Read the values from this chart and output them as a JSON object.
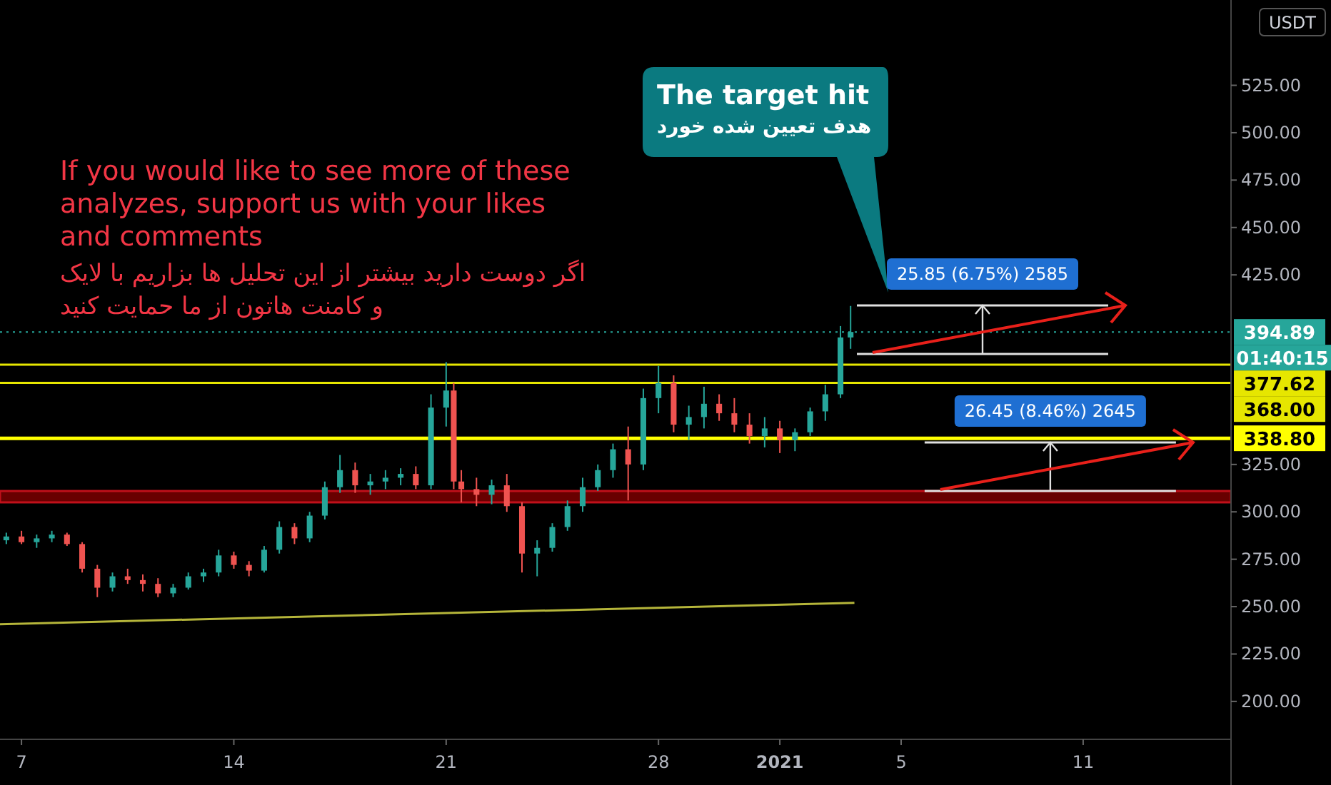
{
  "chart_data": {
    "type": "candlestick",
    "ylabel": "USDT",
    "xlim": [
      "2020-12-06T07:00",
      "2021-01-15T21:00"
    ],
    "xticks": [
      {
        "value": "2020-12-07",
        "label": "7"
      },
      {
        "value": "2020-12-14",
        "label": "14"
      },
      {
        "value": "2020-12-21",
        "label": "21"
      },
      {
        "value": "2020-12-28",
        "label": "28"
      },
      {
        "value": "2021-01-01",
        "label": "2021"
      },
      {
        "value": "2021-01-05",
        "label": "5"
      },
      {
        "value": "2021-01-11",
        "label": "11"
      }
    ],
    "ylim": [
      180,
      570
    ],
    "yticks": [
      {
        "value": 200,
        "label": "200.00"
      },
      {
        "value": 225,
        "label": "225.00"
      },
      {
        "value": 250,
        "label": "250.00"
      },
      {
        "value": 275,
        "label": "275.00"
      },
      {
        "value": 300,
        "label": "300.00"
      },
      {
        "value": 325,
        "label": "325.00"
      },
      {
        "value": 425,
        "label": "425.00"
      },
      {
        "value": 450,
        "label": "450.00"
      },
      {
        "value": 475,
        "label": "475.00"
      },
      {
        "value": 500,
        "label": "500.00"
      },
      {
        "value": 525,
        "label": "525.00"
      }
    ],
    "grid": false,
    "legend": "right",
    "x": [
      "2020-12-06T12:00",
      "2020-12-07T00:00",
      "2020-12-07T12:00",
      "2020-12-08T00:00",
      "2020-12-08T12:00",
      "2020-12-09T00:00",
      "2020-12-09T12:00",
      "2020-12-10T00:00",
      "2020-12-10T12:00",
      "2020-12-11T00:00",
      "2020-12-11T12:00",
      "2020-12-12T00:00",
      "2020-12-12T12:00",
      "2020-12-13T00:00",
      "2020-12-13T12:00",
      "2020-12-14T00:00",
      "2020-12-14T12:00",
      "2020-12-15T00:00",
      "2020-12-15T12:00",
      "2020-12-16T00:00",
      "2020-12-16T12:00",
      "2020-12-17T00:00",
      "2020-12-17T12:00",
      "2020-12-18T00:00",
      "2020-12-18T12:00",
      "2020-12-19T00:00",
      "2020-12-19T12:00",
      "2020-12-20T00:00",
      "2020-12-20T12:00",
      "2020-12-21T00:00",
      "2020-12-21T06:00",
      "2020-12-21T12:00",
      "2020-12-22T00:00",
      "2020-12-22T12:00",
      "2020-12-23T00:00",
      "2020-12-23T12:00",
      "2020-12-24T00:00",
      "2020-12-24T12:00",
      "2020-12-25T00:00",
      "2020-12-25T12:00",
      "2020-12-26T00:00",
      "2020-12-26T12:00",
      "2020-12-27T00:00",
      "2020-12-27T12:00",
      "2020-12-28T00:00",
      "2020-12-28T12:00",
      "2020-12-29T00:00",
      "2020-12-29T12:00",
      "2020-12-30T00:00",
      "2020-12-30T12:00",
      "2020-12-31T00:00",
      "2020-12-31T12:00",
      "2021-01-01T00:00",
      "2021-01-01T12:00",
      "2021-01-02T00:00",
      "2021-01-02T12:00",
      "2021-01-03T00:00",
      "2021-01-03T08:00"
    ],
    "ohlc": [
      [
        285,
        289,
        283,
        287
      ],
      [
        287,
        290,
        283,
        284
      ],
      [
        284,
        288,
        281,
        286
      ],
      [
        286,
        290,
        284,
        288
      ],
      [
        288,
        289,
        282,
        283
      ],
      [
        283,
        284,
        268,
        270
      ],
      [
        270,
        272,
        255,
        260
      ],
      [
        260,
        268,
        258,
        266
      ],
      [
        266,
        270,
        262,
        264
      ],
      [
        264,
        267,
        258,
        262
      ],
      [
        262,
        265,
        255,
        257
      ],
      [
        257,
        262,
        255,
        260
      ],
      [
        260,
        268,
        259,
        266
      ],
      [
        266,
        270,
        263,
        268
      ],
      [
        268,
        280,
        266,
        277
      ],
      [
        277,
        279,
        270,
        272
      ],
      [
        272,
        274,
        266,
        269
      ],
      [
        269,
        282,
        268,
        280
      ],
      [
        280,
        295,
        278,
        292
      ],
      [
        292,
        294,
        283,
        286
      ],
      [
        286,
        300,
        284,
        298
      ],
      [
        298,
        316,
        296,
        313
      ],
      [
        313,
        330,
        310,
        322
      ],
      [
        322,
        326,
        310,
        314
      ],
      [
        314,
        320,
        309,
        316
      ],
      [
        316,
        322,
        312,
        318
      ],
      [
        318,
        323,
        314,
        320
      ],
      [
        320,
        324,
        312,
        314
      ],
      [
        314,
        362,
        312,
        355
      ],
      [
        355,
        379,
        345,
        364
      ],
      [
        364,
        368,
        312,
        316
      ],
      [
        316,
        322,
        305,
        312
      ],
      [
        312,
        318,
        303,
        309
      ],
      [
        309,
        317,
        304,
        314
      ],
      [
        314,
        320,
        300,
        303
      ],
      [
        303,
        305,
        268,
        278
      ],
      [
        278,
        285,
        266,
        281
      ],
      [
        281,
        294,
        279,
        292
      ],
      [
        292,
        306,
        290,
        303
      ],
      [
        303,
        318,
        300,
        313
      ],
      [
        313,
        325,
        311,
        322
      ],
      [
        322,
        336,
        318,
        333
      ],
      [
        333,
        345,
        306,
        325
      ],
      [
        325,
        365,
        322,
        360
      ],
      [
        360,
        377,
        352,
        368
      ],
      [
        368,
        372,
        342,
        346
      ],
      [
        346,
        356,
        338,
        350
      ],
      [
        350,
        366,
        344,
        357
      ],
      [
        357,
        362,
        348,
        352
      ],
      [
        352,
        360,
        342,
        346
      ],
      [
        346,
        352,
        336,
        340
      ],
      [
        340,
        350,
        334,
        344
      ],
      [
        344,
        348,
        331,
        338
      ],
      [
        338,
        344,
        332,
        342
      ],
      [
        342,
        355,
        340,
        353
      ],
      [
        353,
        367,
        348,
        362
      ],
      [
        362,
        398,
        360,
        392
      ],
      [
        392,
        408.6,
        386,
        394.89
      ]
    ],
    "series": [
      {
        "type": "line",
        "x": [
          "2020-12-06T07:00",
          "2021-01-03T11:00"
        ],
        "values": [
          240.7,
          252
        ],
        "color": "#b5b53a"
      }
    ],
    "ref_lines": [
      {
        "axis": "y",
        "value": 394.89,
        "label": "394.89",
        "color": "#26a69a",
        "line_style": "dotted"
      },
      {
        "axis": "y",
        "value": 377.62,
        "label": "377.62",
        "color": "#e6e600",
        "line_style": "solid"
      },
      {
        "axis": "y",
        "value": 368.0,
        "label": "368.00",
        "color": "#e6e600",
        "line_style": "solid"
      },
      {
        "axis": "y",
        "value": 338.8,
        "label": "338.80",
        "color": "#ffff00",
        "line_style": "solid"
      }
    ],
    "bands": [
      {
        "axis": "y",
        "from": 305,
        "to": 311,
        "color": "#8b0000"
      }
    ],
    "annotations": [
      "If you would like to see more of these\nanalyzes, support us with your likes\nand comments",
      "اگر دوست دارید بیشتر از این تحلیل ها بزاریم با لایک\nو کامنت هاتون از ما حمایت کنید",
      "The target hit\nهدف تعیین شده خورد",
      "25.85 (6.75%) 2585",
      {
        "text": "26.45 (8.46%) 2645",
        "x": "2021-01-09T22:00",
        "y": 311
      },
      "01:40:15"
    ]
  }
}
